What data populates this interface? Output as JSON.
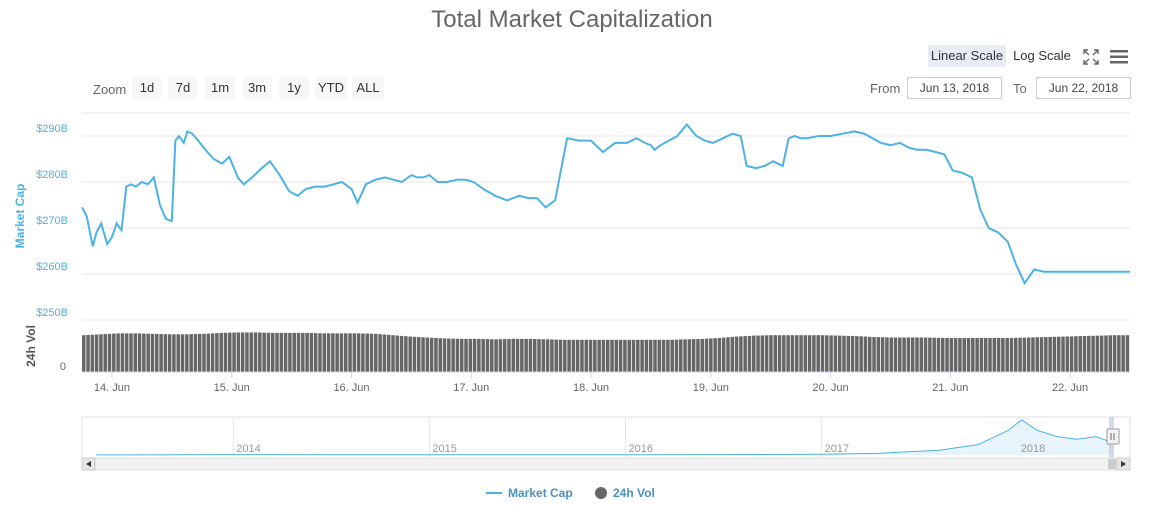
{
  "title": "Total Market Capitalization",
  "controls": {
    "zoom_label": "Zoom",
    "zoom_buttons": [
      "1d",
      "7d",
      "1m",
      "3m",
      "1y",
      "YTD",
      "ALL"
    ],
    "scale_buttons": [
      "Linear Scale",
      "Log Scale"
    ],
    "active_scale": "Linear Scale",
    "from_label": "From",
    "to_label": "To",
    "from_value": "Jun 13, 2018",
    "to_value": "Jun 22, 2018"
  },
  "legend": {
    "market_cap": "Market Cap",
    "volume": "24h Vol"
  },
  "colors": {
    "market_cap": "#4db2e3",
    "volume": "#666666",
    "grid": "#e6e6e6",
    "axis_label": "#4db2e3"
  },
  "icons": [
    "fullscreen-icon",
    "menu-icon"
  ],
  "chart_data": [
    {
      "type": "line",
      "title": "Total Market Capitalization",
      "ylabel": "Market Cap",
      "ylim": [
        250,
        295
      ],
      "y_ticks": [
        "$250B",
        "$260B",
        "$270B",
        "$280B",
        "$290B"
      ],
      "y_tick_values": [
        250,
        260,
        270,
        280,
        290
      ],
      "x_ticks": [
        "14. Jun",
        "15. Jun",
        "16. Jun",
        "17. Jun",
        "18. Jun",
        "19. Jun",
        "20. Jun",
        "21. Jun",
        "22. Jun"
      ],
      "xlim": [
        13.75,
        22.5
      ],
      "grid": true,
      "series": [
        {
          "name": "Market Cap",
          "unit": "billion USD",
          "x": [
            13.75,
            13.79,
            13.84,
            13.87,
            13.91,
            13.96,
            14.0,
            14.04,
            14.08,
            14.12,
            14.16,
            14.2,
            14.25,
            14.3,
            14.35,
            14.4,
            14.45,
            14.5,
            14.53,
            14.56,
            14.6,
            14.63,
            14.67,
            14.72,
            14.78,
            14.85,
            14.92,
            14.98,
            15.05,
            15.1,
            15.17,
            15.25,
            15.32,
            15.4,
            15.48,
            15.55,
            15.62,
            15.7,
            15.78,
            15.85,
            15.92,
            16.0,
            16.05,
            16.12,
            16.2,
            16.28,
            16.35,
            16.42,
            16.5,
            16.55,
            16.6,
            16.65,
            16.72,
            16.8,
            16.88,
            16.95,
            17.02,
            17.1,
            17.2,
            17.3,
            17.4,
            17.48,
            17.55,
            17.62,
            17.7,
            17.8,
            17.9,
            18.0,
            18.1,
            18.2,
            18.3,
            18.38,
            18.45,
            18.5,
            18.53,
            18.58,
            18.65,
            18.72,
            18.8,
            18.88,
            18.95,
            19.02,
            19.1,
            19.18,
            19.25,
            19.3,
            19.38,
            19.45,
            19.52,
            19.6,
            19.65,
            19.7,
            19.75,
            19.8,
            19.9,
            20.0,
            20.1,
            20.2,
            20.28,
            20.35,
            20.42,
            20.5,
            20.58,
            20.65,
            20.72,
            20.8,
            20.88,
            20.95,
            21.02,
            21.1,
            21.18,
            21.25,
            21.32,
            21.4,
            21.48,
            21.55,
            21.62,
            21.7,
            21.78,
            21.85,
            21.92,
            21.98,
            22.02,
            22.08,
            22.13,
            22.18,
            22.22,
            22.26,
            22.3,
            22.34,
            22.38,
            22.42,
            22.44,
            22.46,
            22.48,
            22.5
          ],
          "y": [
            274.5,
            272.5,
            266.0,
            269.0,
            271.0,
            266.5,
            268.0,
            271.0,
            269.5,
            279.0,
            279.5,
            279.0,
            280.0,
            279.5,
            281.0,
            275.0,
            272.0,
            271.5,
            289.0,
            290.0,
            288.5,
            291.0,
            290.5,
            289.0,
            287.0,
            285.0,
            284.0,
            285.5,
            281.0,
            279.5,
            281.0,
            283.0,
            284.5,
            281.5,
            278.0,
            277.0,
            278.5,
            279.0,
            279.0,
            279.5,
            280.0,
            278.5,
            275.5,
            279.5,
            280.5,
            281.0,
            280.5,
            280.0,
            281.5,
            281.0,
            281.0,
            281.5,
            280.0,
            280.0,
            280.5,
            280.5,
            280.0,
            278.5,
            277.0,
            276.0,
            277.0,
            276.5,
            276.5,
            274.5,
            276.0,
            289.5,
            289.0,
            289.0,
            286.5,
            288.5,
            288.5,
            289.5,
            288.5,
            288.0,
            287.0,
            288.0,
            289.0,
            290.0,
            292.5,
            290.0,
            289.0,
            288.5,
            289.5,
            290.5,
            290.0,
            283.5,
            283.0,
            283.5,
            284.5,
            283.5,
            289.5,
            290.0,
            289.5,
            289.5,
            290.0,
            290.0,
            290.5,
            291.0,
            290.5,
            289.5,
            288.5,
            288.0,
            288.5,
            287.5,
            287.0,
            287.0,
            286.5,
            286.0,
            282.5,
            282.0,
            281.0,
            274.0,
            270.0,
            269.0,
            267.0,
            262.0,
            258.0,
            261.0,
            260.5,
            260.5,
            260.5,
            260.5,
            260.5,
            260.5,
            260.5,
            260.5,
            260.5,
            260.5,
            260.5,
            260.5,
            260.5,
            260.5,
            260.5,
            260.5,
            260.5,
            260.5
          ]
        }
      ]
    },
    {
      "type": "bar",
      "ylabel": "24h Vol",
      "y_ticks": [
        "0"
      ],
      "series": [
        {
          "name": "24h Vol",
          "x_range": [
            13.75,
            22.5
          ],
          "relative_values": [
            0.8,
            0.82,
            0.84,
            0.84,
            0.83,
            0.82,
            0.82,
            0.83,
            0.85,
            0.86,
            0.86,
            0.85,
            0.85,
            0.85,
            0.84,
            0.84,
            0.84,
            0.83,
            0.8,
            0.77,
            0.75,
            0.73,
            0.72,
            0.72,
            0.71,
            0.72,
            0.72,
            0.71,
            0.7,
            0.7,
            0.7,
            0.7,
            0.7,
            0.7,
            0.7,
            0.71,
            0.72,
            0.74,
            0.77,
            0.79,
            0.8,
            0.8,
            0.8,
            0.8,
            0.79,
            0.78,
            0.76,
            0.75,
            0.75,
            0.75,
            0.74,
            0.74,
            0.74,
            0.74,
            0.74,
            0.75,
            0.76,
            0.77,
            0.78,
            0.79,
            0.8
          ]
        }
      ]
    },
    {
      "type": "area",
      "role": "navigator",
      "x_ticks": [
        "2014",
        "2015",
        "2016",
        "2017",
        "2018"
      ],
      "series": [
        {
          "name": "Market Cap",
          "x": [
            2013.3,
            2014.0,
            2014.5,
            2015.0,
            2015.5,
            2016.0,
            2016.5,
            2017.0,
            2017.3,
            2017.6,
            2017.8,
            2017.95,
            2018.02,
            2018.1,
            2018.2,
            2018.3,
            2018.4,
            2018.47
          ],
          "y": [
            3,
            8,
            6,
            4,
            4,
            6,
            10,
            18,
            40,
            110,
            240,
            560,
            800,
            560,
            420,
            360,
            420,
            300
          ]
        }
      ]
    }
  ]
}
